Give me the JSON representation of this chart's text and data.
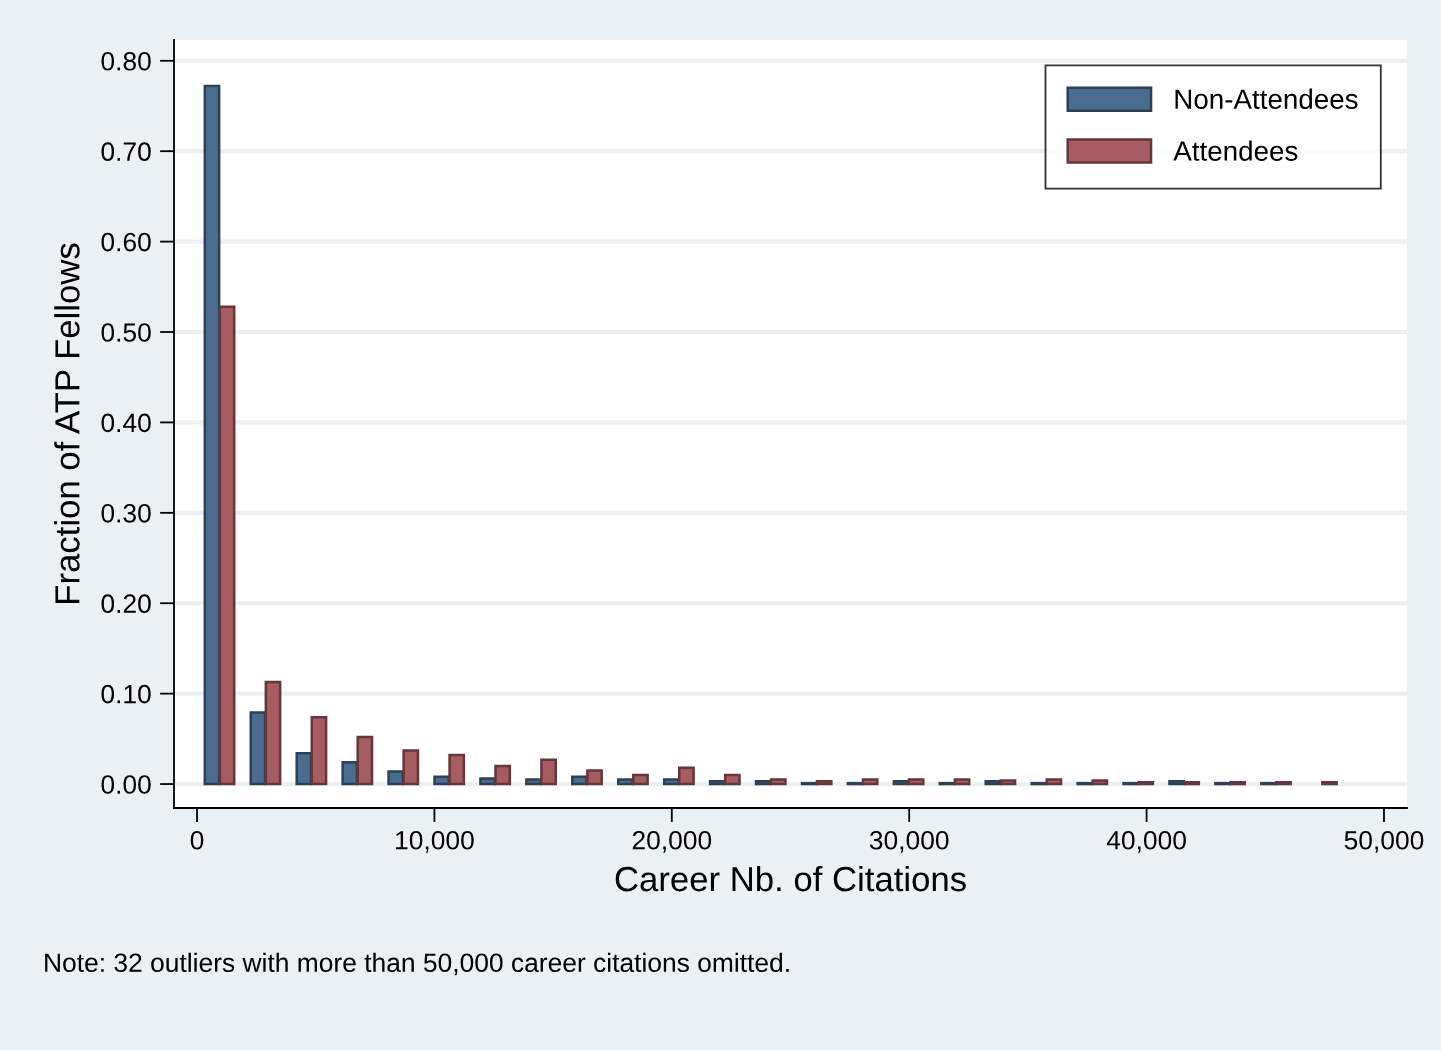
{
  "chart_data": {
    "type": "bar",
    "xlabel": "Career Nb. of Citations",
    "ylabel": "Fraction of ATP Fellows",
    "series": [
      {
        "name": "Non-Attendees",
        "color": "#4a6d8f",
        "x": [
          630,
          2565,
          4500,
          6435,
          8370,
          10305,
          12240,
          14175,
          16110,
          18045,
          19980,
          21915,
          23850,
          25785,
          27720,
          29655,
          31590,
          33525,
          35460,
          37395,
          39330,
          41265,
          43200,
          45135,
          47070
        ],
        "values": [
          0.772,
          0.079,
          0.034,
          0.024,
          0.014,
          0.008,
          0.006,
          0.005,
          0.008,
          0.005,
          0.005,
          0.003,
          0.003,
          0.001,
          0.001,
          0.003,
          0.001,
          0.003,
          0.001,
          0.001,
          0.001,
          0.003,
          0.001,
          0.001,
          0
        ]
      },
      {
        "name": "Attendees",
        "color": "#a65c61",
        "x": [
          1265,
          3200,
          5135,
          7070,
          9005,
          10940,
          12875,
          14810,
          16745,
          18680,
          20615,
          22550,
          24485,
          26420,
          28355,
          30290,
          32225,
          34160,
          36095,
          38030,
          39965,
          41900,
          43835,
          45770,
          47705
        ],
        "values": [
          0.528,
          0.113,
          0.074,
          0.052,
          0.037,
          0.032,
          0.02,
          0.027,
          0.015,
          0.01,
          0.018,
          0.01,
          0.005,
          0.003,
          0.005,
          0.005,
          0.005,
          0.004,
          0.005,
          0.004,
          0.002,
          0.002,
          0.002,
          0.002,
          0.002
        ]
      }
    ],
    "xlim": [
      -970,
      50970
    ],
    "ylim": [
      -0.0265,
      0.823
    ],
    "xticks": [
      0,
      {
        "value": 10000,
        "label": "10,000"
      },
      {
        "value": 20000,
        "label": "20,000"
      },
      {
        "value": 30000,
        "label": "30,000"
      },
      {
        "value": 40000,
        "label": "40,000"
      },
      {
        "value": 50000,
        "label": "50,000"
      }
    ],
    "yticks": [
      {
        "value": 0,
        "label": "0.00"
      },
      {
        "value": 0.1,
        "label": "0.10"
      },
      {
        "value": 0.2,
        "label": "0.20"
      },
      {
        "value": 0.3,
        "label": "0.30"
      },
      {
        "value": 0.4,
        "label": "0.40"
      },
      {
        "value": 0.5,
        "label": "0.50"
      },
      {
        "value": 0.6,
        "label": "0.60"
      },
      {
        "value": 0.7,
        "label": "0.70"
      },
      {
        "value": 0.8,
        "label": "0.80"
      }
    ],
    "grid": "y",
    "legend": "top right",
    "annotations": [
      "Note: 32 outliers with more than 50,000 career citations omitted."
    ]
  }
}
